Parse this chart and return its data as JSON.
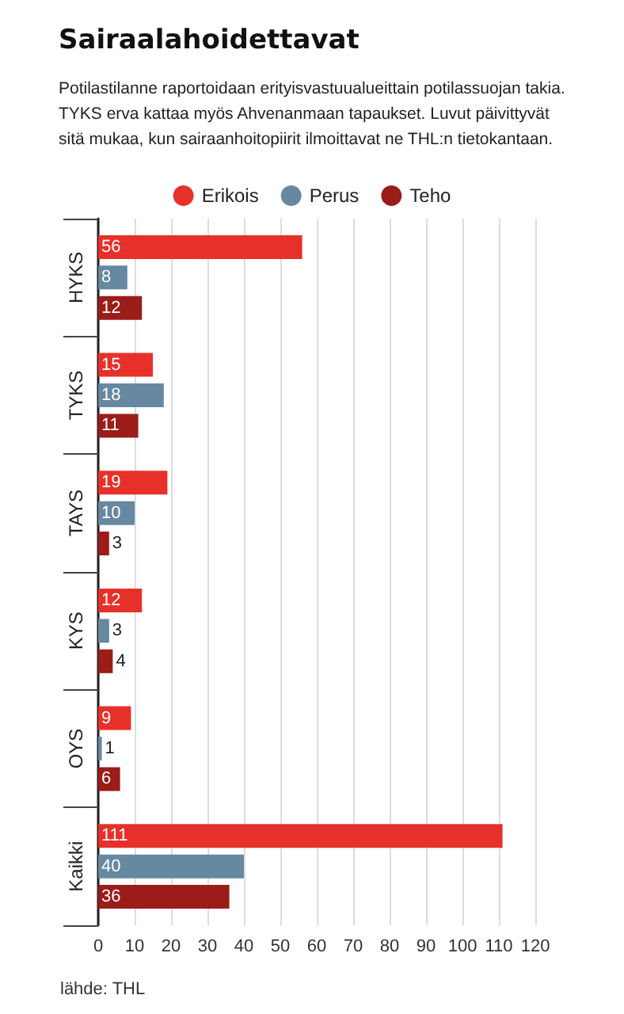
{
  "chart_data": {
    "type": "bar",
    "orientation": "horizontal",
    "title": "Sairaalahoidettavat",
    "subtitle": "Potilastilanne raportoidaan erityisvastuualueittain potilassuojan takia. TYKS erva kattaa myös Ahvenanmaan tapaukset. Luvut päivittyvät sitä mukaa, kun sairaanhoitopiirit ilmoittavat ne THL:n tietokantaan.",
    "categories": [
      "HYKS",
      "TYKS",
      "TAYS",
      "KYS",
      "OYS",
      "Kaikki"
    ],
    "series": [
      {
        "name": "Erikois",
        "color": "#e8302a",
        "values": [
          56,
          15,
          19,
          12,
          9,
          111
        ]
      },
      {
        "name": "Perus",
        "color": "#6688a0",
        "values": [
          8,
          18,
          10,
          3,
          1,
          40
        ]
      },
      {
        "name": "Teho",
        "color": "#9b1c18",
        "values": [
          12,
          11,
          3,
          4,
          6,
          36
        ]
      }
    ],
    "xlim": [
      0,
      120
    ],
    "xticks": [
      0,
      10,
      20,
      30,
      40,
      50,
      60,
      70,
      80,
      90,
      100,
      110,
      120
    ],
    "grid": "x",
    "legend": "top",
    "data_labels": true,
    "annotations": [
      "lähde: THL"
    ]
  }
}
